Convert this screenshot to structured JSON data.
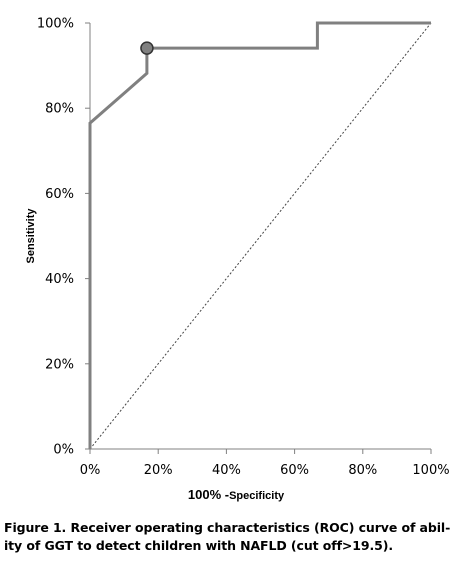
{
  "chart_data": {
    "type": "line",
    "ylabel": "Sensitivity",
    "xlabel_main": "100% -",
    "xlabel_sub": "Specificity",
    "xlim": [
      0,
      1
    ],
    "ylim": [
      0,
      1
    ],
    "x_ticks": [
      "0%",
      "20%",
      "40%",
      "60%",
      "80%",
      "100%"
    ],
    "y_ticks": [
      "0%",
      "20%",
      "40%",
      "60%",
      "80%",
      "100%"
    ],
    "grid": false,
    "series": [
      {
        "x": [
          0,
          0,
          0.167,
          0.167,
          0.667,
          0.667,
          1.0
        ],
        "y": [
          0,
          0.765,
          0.882,
          0.941,
          0.941,
          1.0,
          1.0
        ],
        "color": "#808080"
      }
    ],
    "reference_line": {
      "x": [
        0,
        1
      ],
      "y": [
        0,
        1
      ],
      "style": "dotted"
    },
    "marker": {
      "x": 0.167,
      "y": 0.941,
      "color": "#808080"
    }
  },
  "caption": {
    "line1": "Figure 1. Receiver operating characteristics (ROC) curve of abil-",
    "line2": "ity of GGT to detect children with NAFLD (cut off>19.5)."
  }
}
